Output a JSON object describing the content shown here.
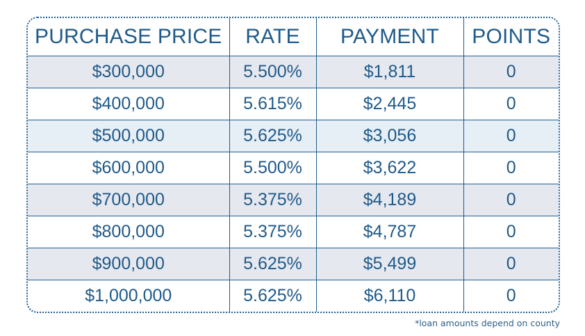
{
  "table": {
    "headers": [
      "PURCHASE PRICE",
      "RATE",
      "PAYMENT",
      "POINTS"
    ],
    "rows": [
      [
        "$300,000",
        "5.500%",
        "$1,811",
        "0"
      ],
      [
        "$400,000",
        "5.615%",
        "$2,445",
        "0"
      ],
      [
        "$500,000",
        "5.625%",
        "$3,056",
        "0"
      ],
      [
        "$600,000",
        "5.500%",
        "$3,622",
        "0"
      ],
      [
        "$700,000",
        "5.375%",
        "$4,189",
        "0"
      ],
      [
        "$800,000",
        "5.375%",
        "$4,787",
        "0"
      ],
      [
        "$900,000",
        "5.625%",
        "$5,499",
        "0"
      ],
      [
        "$1,000,000",
        "5.625%",
        "$6,110",
        "0"
      ]
    ]
  },
  "footnote": "*loan amounts depend on county",
  "colors": {
    "text": "#1e5a8a",
    "row_shade": "#e6e8f0",
    "row_shade_alt": "#e6eef6"
  }
}
